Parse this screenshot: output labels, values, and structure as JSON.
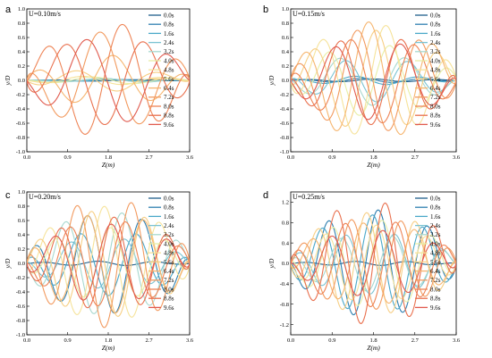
{
  "chart_data": [
    {
      "type": "line",
      "panel": "a",
      "annotation": "U=0.10m/s",
      "xlabel": "Z(m)",
      "ylabel": "y/D",
      "xlim": [
        0.0,
        3.6
      ],
      "ylim": [
        -1.0,
        1.0
      ],
      "xticks": [
        "0.0",
        "0.9",
        "1.8",
        "2.7",
        "3.6"
      ],
      "yticks": [
        "-1.0",
        "-0.8",
        "-0.6",
        "-0.4",
        "-0.2",
        "0.0",
        "0.2",
        "0.4",
        "0.6",
        "0.8",
        "1.0"
      ],
      "legend": "right",
      "grid": false,
      "series": [
        {
          "name": "0.0s",
          "color": "#1f5f8b",
          "amp": 0.01,
          "k": 3.2,
          "ph": 0.0
        },
        {
          "name": "0.8s",
          "color": "#2e7fb0",
          "amp": 0.01,
          "k": 3.4,
          "ph": 0.6
        },
        {
          "name": "1.6s",
          "color": "#4aa8c9",
          "amp": 0.015,
          "k": 3.6,
          "ph": 1.2
        },
        {
          "name": "2.4s",
          "color": "#7bc3d2",
          "amp": 0.02,
          "k": 3.5,
          "ph": 1.8
        },
        {
          "name": "3.2s",
          "color": "#a7d8cf",
          "amp": 0.03,
          "k": 3.3,
          "ph": 2.4
        },
        {
          "name": "4.0s",
          "color": "#e8efa6",
          "amp": 0.05,
          "k": 3.4,
          "ph": 3.0
        },
        {
          "name": "4.8s",
          "color": "#f6e39a",
          "amp": 0.06,
          "k": 3.5,
          "ph": 3.6
        },
        {
          "name": "5.6s",
          "color": "#f7cf85",
          "amp": 0.15,
          "k": 3.4,
          "ph": 4.2
        },
        {
          "name": "6.4s",
          "color": "#f6b56f",
          "amp": 0.35,
          "k": 3.6,
          "ph": 1.0
        },
        {
          "name": "7.2s",
          "color": "#f29a5f",
          "amp": 0.68,
          "k": 3.5,
          "ph": 2.2
        },
        {
          "name": "8.0s",
          "color": "#ee8456",
          "amp": 0.8,
          "k": 3.7,
          "ph": 0.0
        },
        {
          "name": "8.8s",
          "color": "#e9704e",
          "amp": 0.62,
          "k": 3.6,
          "ph": 4.8
        },
        {
          "name": "9.6s",
          "color": "#e05a4e",
          "amp": 0.6,
          "k": 3.4,
          "ph": 3.4
        }
      ]
    },
    {
      "type": "line",
      "panel": "b",
      "annotation": "U=0.15m/s",
      "xlabel": "Z(m)",
      "ylabel": "y/D",
      "xlim": [
        0.0,
        3.6
      ],
      "ylim": [
        -1.0,
        1.0
      ],
      "xticks": [
        "0.0",
        "0.9",
        "1.8",
        "2.7",
        "3.6"
      ],
      "yticks": [
        "-1.0",
        "-0.8",
        "-0.6",
        "-0.4",
        "-0.2",
        "0.0",
        "0.2",
        "0.4",
        "0.6",
        "0.8",
        "1.0"
      ],
      "legend": "right",
      "grid": false,
      "series": [
        {
          "name": "0.0s",
          "color": "#1f5f8b",
          "amp": 0.02,
          "k": 4.4,
          "ph": 0.0
        },
        {
          "name": "0.8s",
          "color": "#2e7fb0",
          "amp": 0.03,
          "k": 4.6,
          "ph": 0.8
        },
        {
          "name": "1.6s",
          "color": "#4aa8c9",
          "amp": 0.06,
          "k": 4.5,
          "ph": 1.6
        },
        {
          "name": "2.4s",
          "color": "#7bc3d2",
          "amp": 0.3,
          "k": 4.6,
          "ph": 2.4
        },
        {
          "name": "3.2s",
          "color": "#a7d8cf",
          "amp": 0.35,
          "k": 4.4,
          "ph": 3.2
        },
        {
          "name": "4.0s",
          "color": "#e8efa6",
          "amp": 0.5,
          "k": 4.7,
          "ph": 4.0
        },
        {
          "name": "4.8s",
          "color": "#f6e39a",
          "amp": 0.78,
          "k": 4.5,
          "ph": 4.8
        },
        {
          "name": "5.6s",
          "color": "#f7cf85",
          "amp": 0.7,
          "k": 4.6,
          "ph": 5.6
        },
        {
          "name": "6.4s",
          "color": "#f6b56f",
          "amp": 0.82,
          "k": 4.4,
          "ph": 0.4
        },
        {
          "name": "7.2s",
          "color": "#f29a5f",
          "amp": 0.72,
          "k": 4.6,
          "ph": 1.2
        },
        {
          "name": "8.0s",
          "color": "#ee8456",
          "amp": 0.6,
          "k": 4.5,
          "ph": 2.0
        },
        {
          "name": "8.8s",
          "color": "#e9704e",
          "amp": 0.62,
          "k": 4.7,
          "ph": 2.8
        },
        {
          "name": "9.6s",
          "color": "#e05a4e",
          "amp": 0.55,
          "k": 4.4,
          "ph": 3.6
        }
      ]
    },
    {
      "type": "line",
      "panel": "c",
      "annotation": "U=0.20m/s",
      "xlabel": "Z(m)",
      "ylabel": "y/D",
      "xlim": [
        0.0,
        3.6
      ],
      "ylim": [
        -1.0,
        1.0
      ],
      "xticks": [
        "0.0",
        "0.9",
        "1.8",
        "2.7",
        "3.6"
      ],
      "yticks": [
        "-1.0",
        "-0.8",
        "-0.6",
        "-0.4",
        "-0.2",
        "0.0",
        "0.2",
        "0.4",
        "0.6",
        "0.8",
        "1.0"
      ],
      "legend": "right",
      "grid": false,
      "series": [
        {
          "name": "0.0s",
          "color": "#1f5f8b",
          "amp": 0.03,
          "k": 5.0,
          "ph": 0.0
        },
        {
          "name": "0.8s",
          "color": "#2e7fb0",
          "amp": 0.7,
          "k": 5.2,
          "ph": 0.9
        },
        {
          "name": "1.6s",
          "color": "#4aa8c9",
          "amp": 0.45,
          "k": 5.1,
          "ph": 1.8
        },
        {
          "name": "2.4s",
          "color": "#7bc3d2",
          "amp": 0.35,
          "k": 5.3,
          "ph": 2.7
        },
        {
          "name": "3.2s",
          "color": "#a7d8cf",
          "amp": 0.72,
          "k": 5.0,
          "ph": 3.6
        },
        {
          "name": "4.0s",
          "color": "#e8efa6",
          "amp": 0.5,
          "k": 5.2,
          "ph": 4.5
        },
        {
          "name": "4.8s",
          "color": "#f6e39a",
          "amp": 0.8,
          "k": 5.1,
          "ph": 5.4
        },
        {
          "name": "5.6s",
          "color": "#f7cf85",
          "amp": 0.75,
          "k": 5.3,
          "ph": 0.3
        },
        {
          "name": "6.4s",
          "color": "#f6b56f",
          "amp": 0.7,
          "k": 5.0,
          "ph": 1.2
        },
        {
          "name": "7.2s",
          "color": "#f29a5f",
          "amp": 0.9,
          "k": 5.2,
          "ph": 2.1
        },
        {
          "name": "8.0s",
          "color": "#ee8456",
          "amp": 0.6,
          "k": 5.1,
          "ph": 3.0
        },
        {
          "name": "8.8s",
          "color": "#e9704e",
          "amp": 0.65,
          "k": 5.3,
          "ph": 3.9
        },
        {
          "name": "9.6s",
          "color": "#e05a4e",
          "amp": 0.55,
          "k": 5.0,
          "ph": 4.8
        }
      ]
    },
    {
      "type": "line",
      "panel": "d",
      "annotation": "U=0.25m/s",
      "xlabel": "Z(m)",
      "ylabel": "y/D",
      "xlim": [
        0.0,
        3.6
      ],
      "ylim": [
        -1.4,
        1.4
      ],
      "xticks": [
        "0.0",
        "0.9",
        "1.8",
        "2.7",
        "3.6"
      ],
      "yticks": [
        "-1.2",
        "-0.8",
        "-0.4",
        "0.0",
        "0.4",
        "0.8",
        "1.2"
      ],
      "legend": "right",
      "grid": false,
      "series": [
        {
          "name": "0.0s",
          "color": "#1f5f8b",
          "amp": 0.04,
          "k": 5.6,
          "ph": 0.0
        },
        {
          "name": "0.8s",
          "color": "#2e7fb0",
          "amp": 1.05,
          "k": 5.8,
          "ph": 3.1
        },
        {
          "name": "1.6s",
          "color": "#4aa8c9",
          "amp": 0.95,
          "k": 5.7,
          "ph": 4.0
        },
        {
          "name": "2.4s",
          "color": "#7bc3d2",
          "amp": 0.6,
          "k": 5.9,
          "ph": 0.8
        },
        {
          "name": "3.2s",
          "color": "#a7d8cf",
          "amp": 0.55,
          "k": 5.6,
          "ph": 1.7
        },
        {
          "name": "4.0s",
          "color": "#e8efa6",
          "amp": 0.85,
          "k": 5.8,
          "ph": 2.6
        },
        {
          "name": "4.8s",
          "color": "#f6e39a",
          "amp": 0.75,
          "k": 5.7,
          "ph": 3.5
        },
        {
          "name": "5.6s",
          "color": "#f7cf85",
          "amp": 1.0,
          "k": 5.9,
          "ph": 4.4
        },
        {
          "name": "6.4s",
          "color": "#f6b56f",
          "amp": 0.8,
          "k": 5.6,
          "ph": 5.3
        },
        {
          "name": "7.2s",
          "color": "#f29a5f",
          "amp": 0.9,
          "k": 5.8,
          "ph": 0.2
        },
        {
          "name": "8.0s",
          "color": "#ee8456",
          "amp": 0.85,
          "k": 5.7,
          "ph": 1.1
        },
        {
          "name": "8.8s",
          "color": "#e9704e",
          "amp": 1.2,
          "k": 5.9,
          "ph": 2.0
        },
        {
          "name": "9.6s",
          "color": "#e05a4e",
          "amp": 0.65,
          "k": 5.6,
          "ph": 2.9
        }
      ]
    }
  ]
}
